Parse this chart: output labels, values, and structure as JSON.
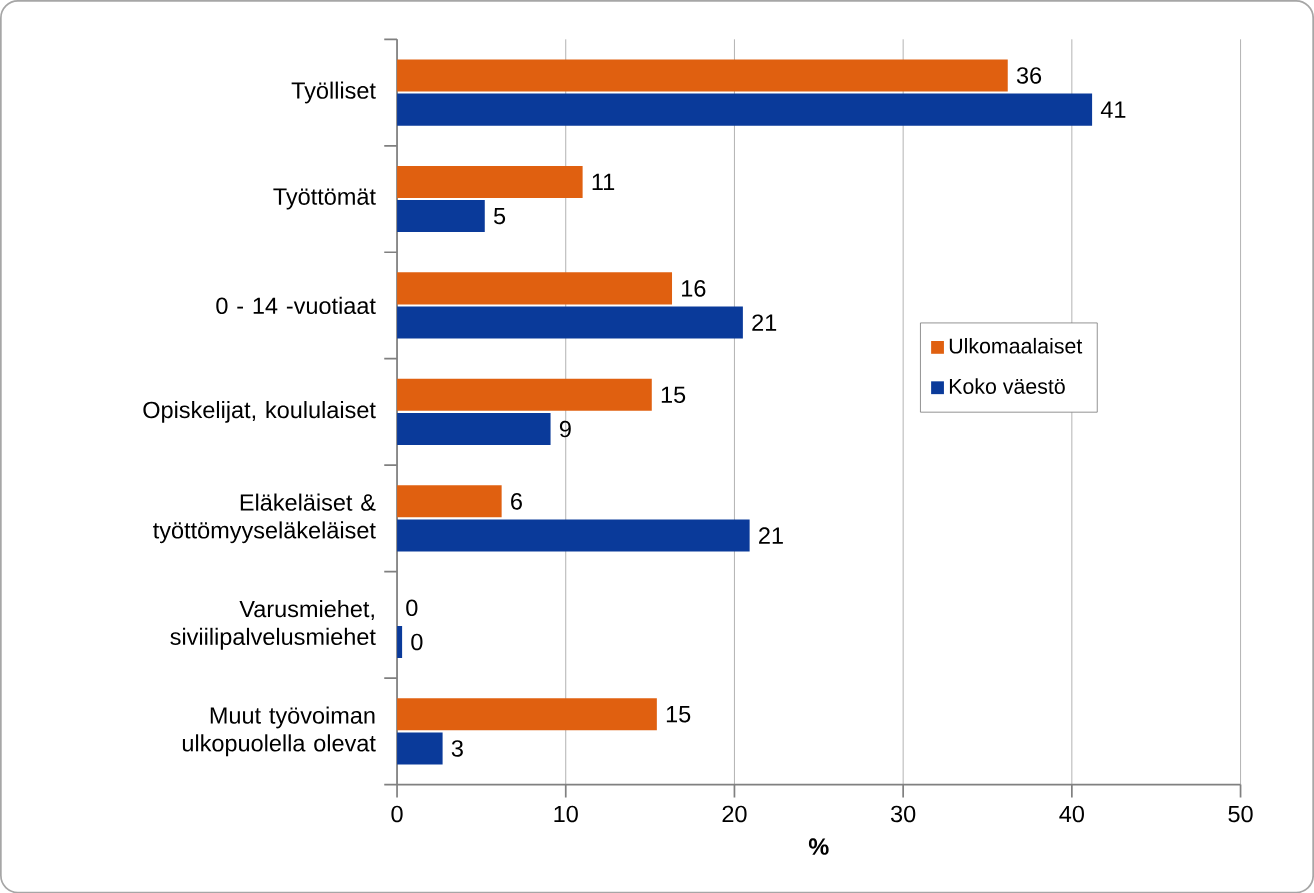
{
  "chart_data": {
    "type": "bar",
    "orientation": "horizontal",
    "categories": [
      "Työlliset",
      "Työttömät",
      "0 - 14 -vuotiaat",
      "Opiskelijat, koululaiset",
      "Eläkeläiset & työttömyyseläkeläiset",
      "Varusmiehet, siviilipalvelusmiehet",
      "Muut työvoiman ulkopuolella olevat"
    ],
    "series": [
      {
        "name": "Ulkomaalaiset",
        "color": "#e06010",
        "values": [
          36.2,
          11.0,
          16.3,
          15.1,
          6.2,
          0,
          15.4
        ],
        "value_labels": [
          "36",
          "11",
          "16",
          "15",
          "6",
          "0",
          "15"
        ]
      },
      {
        "name": "Koko väestö",
        "color": "#0a3a9a",
        "values": [
          41.2,
          5.2,
          20.5,
          9.1,
          20.9,
          0.3,
          2.7
        ],
        "value_labels": [
          "41",
          "5",
          "21",
          "9",
          "21",
          "0",
          "3"
        ]
      }
    ],
    "xlabel": "%",
    "xlim": [
      0,
      50
    ],
    "xticks": [
      0,
      10,
      20,
      30,
      40,
      50
    ],
    "grid": "x",
    "legend": "right"
  }
}
